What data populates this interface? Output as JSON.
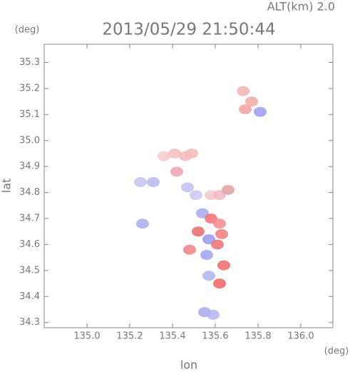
{
  "chart_data": {
    "type": "scatter",
    "altitude_label": "ALT(km) 2.0",
    "title": "2013/05/29 21:50:44",
    "x_label": "lon",
    "y_label": "lat",
    "x_unit": "(deg)",
    "y_unit": "(deg)",
    "xlim": [
      134.8,
      136.15
    ],
    "ylim": [
      34.28,
      35.37
    ],
    "xticks": [
      {
        "value": 135,
        "label": "135.0"
      },
      135.2,
      135.4,
      135.6,
      135.8,
      {
        "value": 136,
        "label": "136.0"
      }
    ],
    "yticks": [
      34.3,
      34.4,
      34.5,
      34.6,
      34.7,
      34.8,
      34.9,
      {
        "value": 35,
        "label": "35.0"
      },
      35.1,
      35.2,
      35.3
    ],
    "x": [
      135.73,
      135.77,
      135.74,
      135.81,
      135.36,
      135.41,
      135.46,
      135.49,
      135.42,
      135.25,
      135.31,
      135.47,
      135.51,
      135.58,
      135.62,
      135.66,
      135.54,
      135.58,
      135.62,
      135.52,
      135.57,
      135.63,
      135.48,
      135.56,
      135.61,
      135.64,
      135.57,
      135.62,
      135.55,
      135.59,
      135.26
    ],
    "y": [
      35.19,
      35.15,
      35.12,
      35.11,
      34.94,
      34.95,
      34.94,
      34.95,
      34.88,
      34.84,
      34.84,
      34.82,
      34.79,
      34.79,
      34.79,
      34.81,
      34.72,
      34.7,
      34.68,
      34.65,
      34.62,
      34.64,
      34.58,
      34.56,
      34.6,
      34.52,
      34.48,
      34.45,
      34.34,
      34.33,
      34.68
    ],
    "colors": [
      "#f4b0b0",
      "#f4a8a8",
      "#f2a0a0",
      "#9a9af0",
      "#f6caca",
      "#f4c0c0",
      "#f2baba",
      "#f4b8b8",
      "#f0a0b0",
      "#c4c4f2",
      "#b8b8f0",
      "#c0c0f4",
      "#c8c8f4",
      "#f4c8c8",
      "#f0b8c0",
      "#e0a0a0",
      "#a8a8f0",
      "#f07070",
      "#f28888",
      "#e86868",
      "#9898ec",
      "#f07a7a",
      "#f08080",
      "#a0a0f0",
      "#ee7070",
      "#f06a6a",
      "#b0b0f2",
      "#ee6060",
      "#a8a8ee",
      "#b4b4f2",
      "#aaaaf0"
    ]
  }
}
